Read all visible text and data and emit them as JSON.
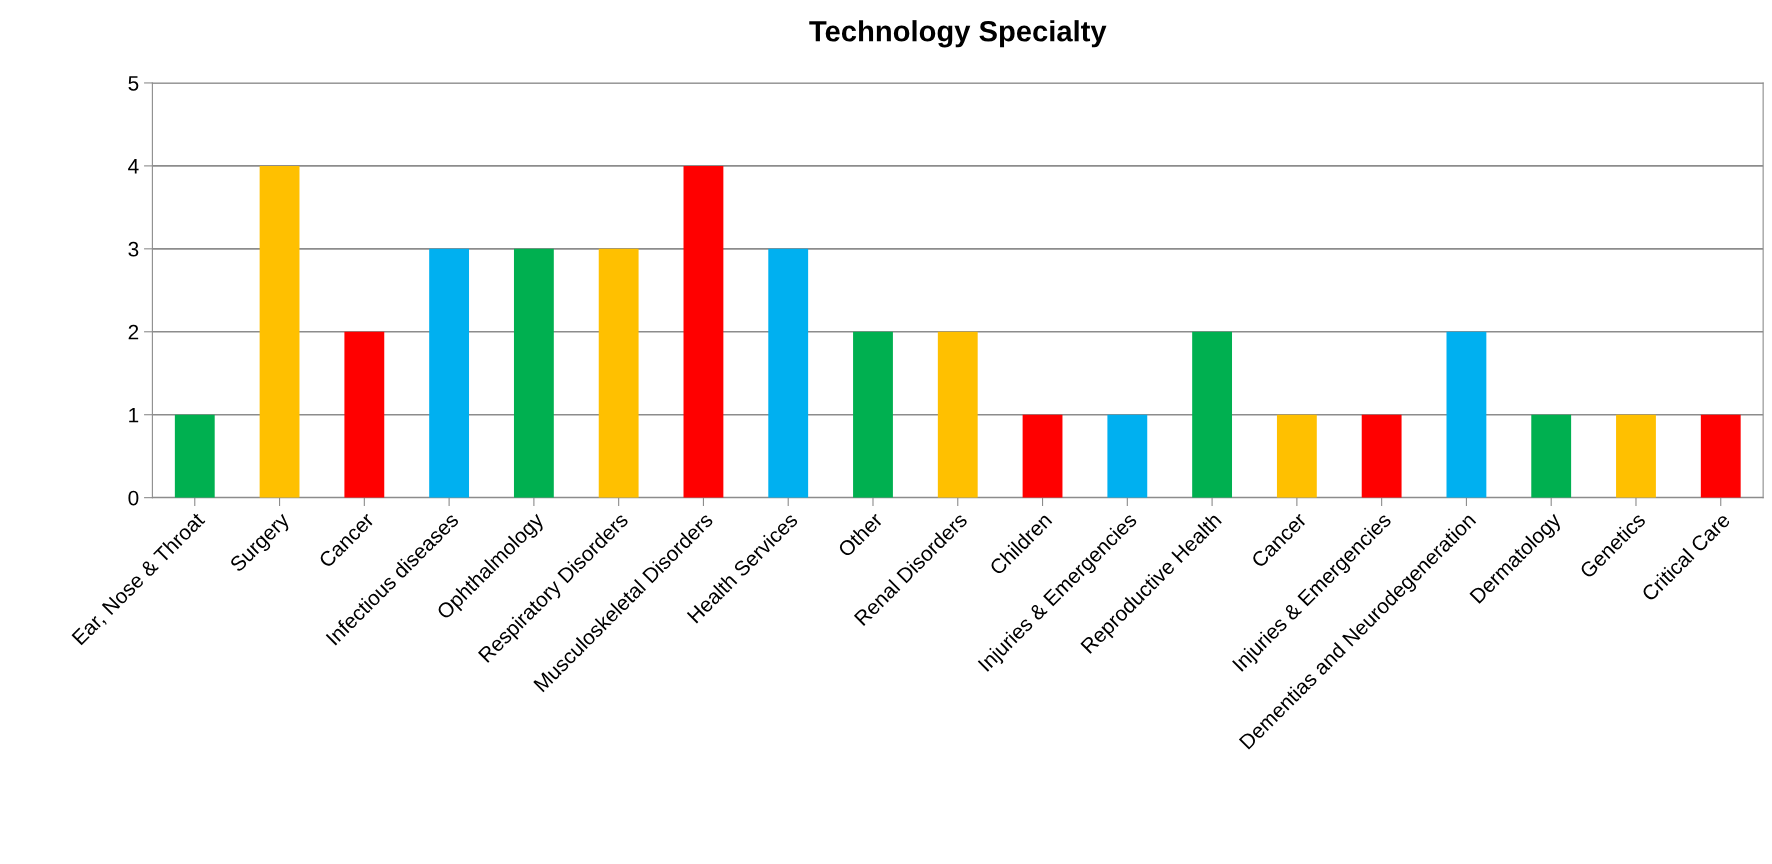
{
  "chart_data": {
    "type": "bar",
    "title": "Technology Specialty",
    "categories": [
      "Ear, Nose & Throat",
      "Surgery",
      "Cancer",
      "Infectious diseases",
      "Ophthalmology",
      "Respiratory Disorders",
      "Musculoskeletal Disorders",
      "Health Services",
      "Other",
      "Renal Disorders",
      "Children",
      "Injuries & Emergencies",
      "Reproductive Health",
      "Cancer",
      "Injuries & Emergencies",
      "Dementias and Neurodegeneration",
      "Dermatology",
      "Genetics",
      "Critical Care"
    ],
    "values": [
      1,
      4,
      2,
      3,
      3,
      3,
      4,
      3,
      2,
      2,
      1,
      1,
      2,
      1,
      1,
      2,
      1,
      1,
      1
    ],
    "colors": [
      "#00b050",
      "#ffc000",
      "#ff0000",
      "#00b0f0",
      "#00b050",
      "#ffc000",
      "#ff0000",
      "#00b0f0",
      "#00b050",
      "#ffc000",
      "#ff0000",
      "#00b0f0",
      "#00b050",
      "#ffc000",
      "#ff0000",
      "#00b0f0",
      "#00b050",
      "#ffc000",
      "#ff0000"
    ],
    "ylim": [
      0,
      5
    ],
    "yticks": [
      0,
      1,
      2,
      3,
      4,
      5
    ],
    "grid": "y",
    "legend": false
  }
}
